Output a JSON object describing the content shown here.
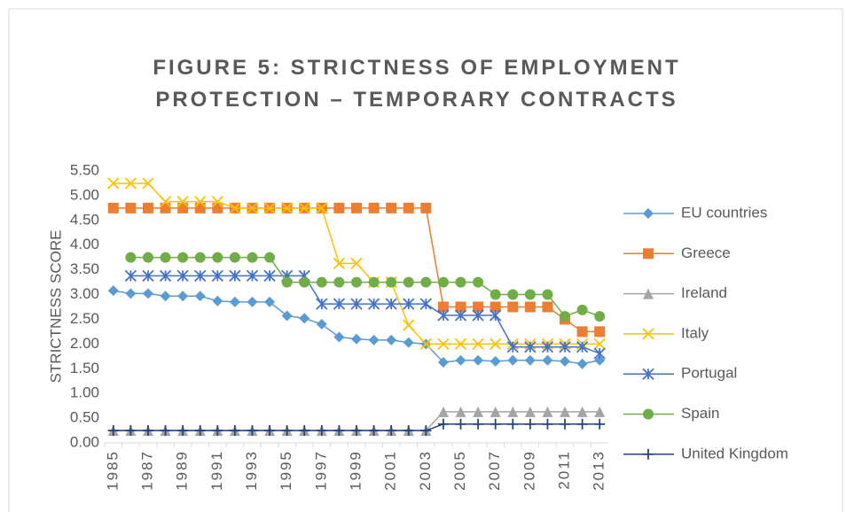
{
  "chart_data": {
    "type": "line",
    "title": "FIGURE 5: STRICTNESS OF EMPLOYMENT PROTECTION – TEMPORARY CONTRACTS",
    "y_label": "STRICTNESS SCORE",
    "categories": [
      "1985",
      null,
      "1987",
      null,
      "1989",
      null,
      "1991",
      null,
      "1993",
      null,
      "1995",
      null,
      "1997",
      null,
      "1999",
      null,
      "2001",
      null,
      "2003",
      null,
      "2005",
      null,
      "2007",
      null,
      "2009",
      null,
      "2011",
      null,
      "2013"
    ],
    "ylim": [
      0,
      5.5
    ],
    "yticks": [
      {
        "value": 0,
        "label": "0.00"
      },
      {
        "value": 0.5,
        "label": "0.50"
      },
      {
        "value": 1,
        "label": "1.00"
      },
      {
        "value": 1.5,
        "label": "1.50"
      },
      {
        "value": 2,
        "label": "2.00"
      },
      {
        "value": 2.5,
        "label": "2.50"
      },
      {
        "value": 3,
        "label": "3.00"
      },
      {
        "value": 3.5,
        "label": "3.50"
      },
      {
        "value": 4,
        "label": "4.00"
      },
      {
        "value": 4.5,
        "label": "4.50"
      },
      {
        "value": 5,
        "label": "5.00"
      },
      {
        "value": 5.5,
        "label": "5.50"
      }
    ],
    "legend": "right",
    "series": [
      {
        "name": "EU countries",
        "color": "#5b9bd5",
        "marker": "diamond",
        "values": [
          3.08,
          3.02,
          3.02,
          2.97,
          2.97,
          2.97,
          2.87,
          2.85,
          2.85,
          2.85,
          2.57,
          2.52,
          2.4,
          2.14,
          2.1,
          2.08,
          2.08,
          2.03,
          2.0,
          1.63,
          1.67,
          1.67,
          1.65,
          1.67,
          1.67,
          1.67,
          1.65,
          1.6,
          1.67
        ]
      },
      {
        "name": "Greece",
        "color": "#ed7d31",
        "marker": "square",
        "values": [
          4.75,
          4.75,
          4.75,
          4.75,
          4.75,
          4.75,
          4.75,
          4.75,
          4.75,
          4.75,
          4.75,
          4.75,
          4.75,
          4.75,
          4.75,
          4.75,
          4.75,
          4.75,
          4.75,
          2.75,
          2.75,
          2.75,
          2.75,
          2.75,
          2.75,
          2.75,
          2.5,
          2.25,
          2.25
        ]
      },
      {
        "name": "Ireland",
        "color": "#a5a5a5",
        "marker": "triangle",
        "values": [
          0.25,
          0.25,
          0.25,
          0.25,
          0.25,
          0.25,
          0.25,
          0.25,
          0.25,
          0.25,
          0.25,
          0.25,
          0.25,
          0.25,
          0.25,
          0.25,
          0.25,
          0.25,
          0.25,
          0.63,
          0.63,
          0.63,
          0.63,
          0.63,
          0.63,
          0.63,
          0.63,
          0.63,
          0.63
        ]
      },
      {
        "name": "Italy",
        "color": "#ffc000",
        "marker": "x",
        "values": [
          5.25,
          5.25,
          5.25,
          4.88,
          4.88,
          4.88,
          4.88,
          4.75,
          4.75,
          4.75,
          4.75,
          4.75,
          4.75,
          3.63,
          3.63,
          3.25,
          3.25,
          2.38,
          2.0,
          2.0,
          2.0,
          2.0,
          2.0,
          2.0,
          2.0,
          2.0,
          2.0,
          2.0,
          2.0
        ]
      },
      {
        "name": "Portugal",
        "color": "#4472c4",
        "marker": "star",
        "values": [
          null,
          3.38,
          3.38,
          3.38,
          3.38,
          3.38,
          3.38,
          3.38,
          3.38,
          3.38,
          3.38,
          3.38,
          2.81,
          2.81,
          2.81,
          2.81,
          2.81,
          2.81,
          2.81,
          2.58,
          2.58,
          2.58,
          2.58,
          1.94,
          1.94,
          1.94,
          1.94,
          1.94,
          1.81
        ]
      },
      {
        "name": "Spain",
        "color": "#70ad47",
        "marker": "circle",
        "values": [
          null,
          3.75,
          3.75,
          3.75,
          3.75,
          3.75,
          3.75,
          3.75,
          3.75,
          3.75,
          3.25,
          3.25,
          3.25,
          3.25,
          3.25,
          3.25,
          3.25,
          3.25,
          3.25,
          3.25,
          3.25,
          3.25,
          3.0,
          3.0,
          3.0,
          3.0,
          2.56,
          2.69,
          2.56
        ]
      },
      {
        "name": "United Kingdom",
        "color": "#264478",
        "marker": "plus",
        "values": [
          0.25,
          0.25,
          0.25,
          0.25,
          0.25,
          0.25,
          0.25,
          0.25,
          0.25,
          0.25,
          0.25,
          0.25,
          0.25,
          0.25,
          0.25,
          0.25,
          0.25,
          0.25,
          0.25,
          0.38,
          0.38,
          0.38,
          0.38,
          0.38,
          0.38,
          0.38,
          0.38,
          0.38,
          0.38
        ]
      }
    ]
  }
}
